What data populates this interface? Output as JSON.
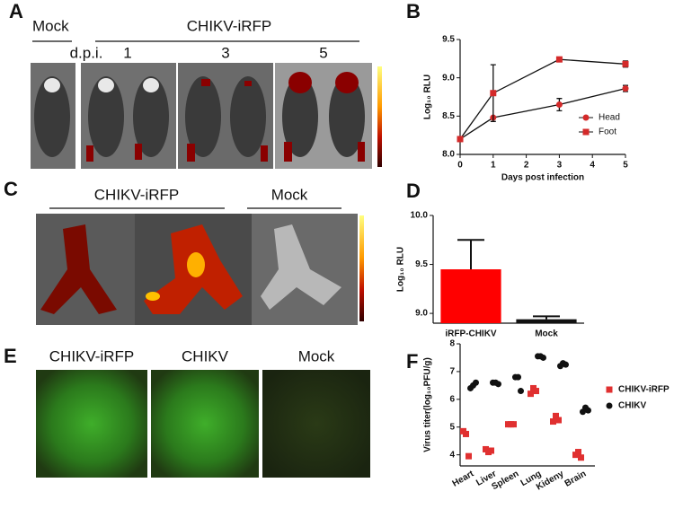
{
  "panel_labels": [
    "A",
    "B",
    "C",
    "D",
    "E",
    "F"
  ],
  "panel_a": {
    "mock": "Mock",
    "virus": "CHIKV-iRFP",
    "dpi": "d.p.i.",
    "days": [
      "1",
      "3",
      "5"
    ]
  },
  "panel_c": {
    "virus": "CHIKV-iRFP",
    "mock": "Mock"
  },
  "panel_e": {
    "labels": [
      "CHIKV-iRFP",
      "CHIKV",
      "Mock"
    ]
  },
  "chart_data": [
    {
      "type": "line",
      "xlabel": "Days post infection",
      "ylabel": "Log₁₀ RLU",
      "xlim": [
        0,
        5
      ],
      "xticks": [
        0,
        1,
        2,
        3,
        4,
        5
      ],
      "ylim": [
        8,
        9.5
      ],
      "yticks": [
        {
          "value": 8,
          "label": "8.0"
        },
        8.5,
        {
          "value": 9,
          "label": "9.0"
        },
        9.5
      ],
      "legend": "lower right",
      "series": [
        {
          "name": "Head",
          "color": "#d42a2a",
          "marker": "circle",
          "x": [
            0,
            1,
            3,
            5
          ],
          "values": [
            8.2,
            8.48,
            8.65,
            8.86
          ],
          "errors": [
            0,
            0,
            0.08,
            0.04
          ]
        },
        {
          "name": "Foot",
          "color": "#d42a2a",
          "marker": "square",
          "x": [
            0,
            1,
            3,
            5
          ],
          "values": [
            8.2,
            8.8,
            9.24,
            9.18
          ],
          "errors": [
            0,
            0.37,
            0.03,
            0.04
          ]
        }
      ]
    },
    {
      "type": "bar",
      "ylabel": "Log₁₀ RLU",
      "categories": [
        "iRFP-CHIKV",
        "Mock"
      ],
      "values": [
        9.45,
        8.94
      ],
      "errors": [
        0.3,
        0.03
      ],
      "colors": [
        "#ff0000",
        "#111111"
      ],
      "ylim": [
        8.9,
        10
      ],
      "yticks": [
        {
          "value": 9,
          "label": "9.0"
        },
        9.5,
        {
          "value": 10,
          "label": "10.0"
        }
      ]
    },
    {
      "type": "dot",
      "ylabel": "Virus titer(log₁₀PFU/g)",
      "categories": [
        "Heart",
        "Liver",
        "Spleen",
        "Lung",
        "Kideny",
        "Brain"
      ],
      "ylim": [
        3.6,
        8
      ],
      "yticks": [
        4,
        5,
        6,
        7,
        8
      ],
      "legend": "right",
      "series": [
        {
          "name": "CHIKV-iRFP",
          "color": "#e03030",
          "marker": "square",
          "values": [
            [
              4.85,
              4.75,
              3.95
            ],
            [
              4.2,
              4.1,
              4.15
            ],
            [
              5.1,
              5.1,
              5.1
            ],
            [
              6.2,
              6.4,
              6.3
            ],
            [
              5.2,
              5.4,
              5.25
            ],
            [
              4.0,
              4.1,
              3.9
            ]
          ]
        },
        {
          "name": "CHIKV",
          "color": "#111111",
          "marker": "circle",
          "values": [
            [
              6.4,
              6.5,
              6.6
            ],
            [
              6.6,
              6.6,
              6.55
            ],
            [
              6.8,
              6.8,
              6.3
            ],
            [
              7.55,
              7.55,
              7.5
            ],
            [
              7.2,
              7.3,
              7.25
            ],
            [
              5.55,
              5.7,
              5.6
            ]
          ]
        }
      ]
    }
  ]
}
